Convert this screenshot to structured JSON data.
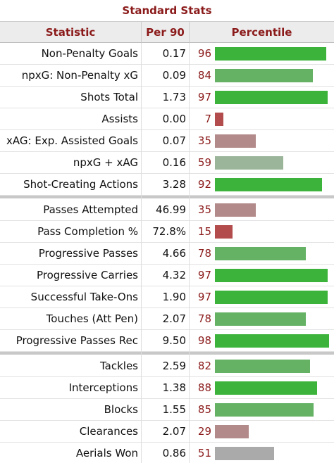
{
  "title": "Standard Stats",
  "headers": [
    "Statistic",
    "Per 90",
    "Percentile"
  ],
  "sections": [
    {
      "rows": [
        {
          "statistic": "Non-Penalty Goals",
          "per_90": "0.17",
          "percentile": 96,
          "color": "#3cb43c"
        },
        {
          "statistic": "npxG: Non-Penalty xG",
          "per_90": "0.09",
          "percentile": 84,
          "color": "#65b265"
        },
        {
          "statistic": "Shots Total",
          "per_90": "1.73",
          "percentile": 97,
          "color": "#3cb43c"
        },
        {
          "statistic": "Assists",
          "per_90": "0.00",
          "percentile": 7,
          "color": "#b34c4c"
        },
        {
          "statistic": "xAG: Exp. Assisted Goals",
          "per_90": "0.07",
          "percentile": 35,
          "color": "#b38a8a"
        },
        {
          "statistic": "npxG + xAG",
          "per_90": "0.16",
          "percentile": 59,
          "color": "#9ab59a"
        },
        {
          "statistic": "Shot-Creating Actions",
          "per_90": "3.28",
          "percentile": 92,
          "color": "#3cb43c"
        }
      ]
    },
    {
      "rows": [
        {
          "statistic": "Passes Attempted",
          "per_90": "46.99",
          "percentile": 35,
          "color": "#b38a8a"
        },
        {
          "statistic": "Pass Completion %",
          "per_90": "72.8%",
          "percentile": 15,
          "color": "#b34c4c"
        },
        {
          "statistic": "Progressive Passes",
          "per_90": "4.66",
          "percentile": 78,
          "color": "#65b265"
        },
        {
          "statistic": "Progressive Carries",
          "per_90": "4.32",
          "percentile": 97,
          "color": "#3cb43c"
        },
        {
          "statistic": "Successful Take-Ons",
          "per_90": "1.90",
          "percentile": 97,
          "color": "#3cb43c"
        },
        {
          "statistic": "Touches (Att Pen)",
          "per_90": "2.07",
          "percentile": 78,
          "color": "#65b265"
        },
        {
          "statistic": "Progressive Passes Rec",
          "per_90": "9.50",
          "percentile": 98,
          "color": "#3cb43c"
        }
      ]
    },
    {
      "rows": [
        {
          "statistic": "Tackles",
          "per_90": "2.59",
          "percentile": 82,
          "color": "#65b265"
        },
        {
          "statistic": "Interceptions",
          "per_90": "1.38",
          "percentile": 88,
          "color": "#3cb43c"
        },
        {
          "statistic": "Blocks",
          "per_90": "1.55",
          "percentile": 85,
          "color": "#65b265"
        },
        {
          "statistic": "Clearances",
          "per_90": "2.07",
          "percentile": 29,
          "color": "#b38a8a"
        },
        {
          "statistic": "Aerials Won",
          "per_90": "0.86",
          "percentile": 51,
          "color": "#aaaaaa"
        }
      ]
    }
  ]
}
